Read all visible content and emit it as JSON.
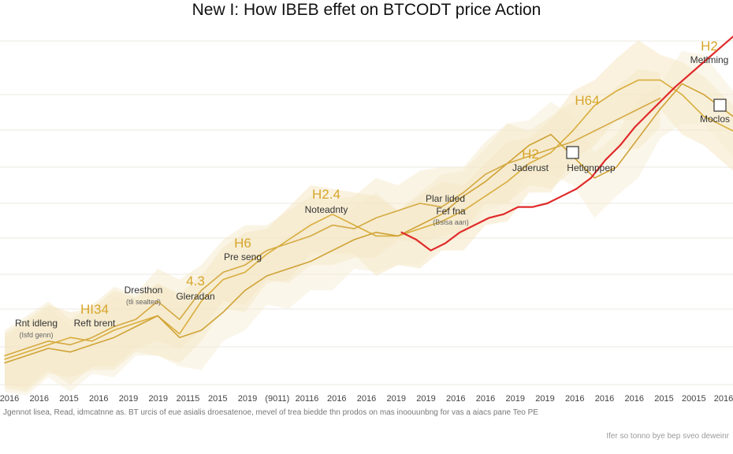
{
  "chart_data": {
    "type": "line",
    "title": "New I: How IBEB effet on BTCODT price Action",
    "xlabel": "",
    "ylabel": "",
    "grid": true,
    "ylim": [
      0,
      100
    ],
    "x_tick_labels": [
      "2016",
      "2016",
      "2015",
      "2016",
      "2019",
      "2019",
      "20115",
      "2015",
      "2019",
      "(9011)",
      "20116",
      "2016",
      "2016",
      "2019",
      "2019",
      "2016",
      "2016",
      "2019",
      "2019",
      "2016",
      "2016",
      "2016",
      "2015",
      "20015",
      "2016"
    ],
    "series": [
      {
        "color": "#e02a2a",
        "x": [
          0.545,
          0.565,
          0.585,
          0.605,
          0.625,
          0.645,
          0.665,
          0.685,
          0.705,
          0.725,
          0.745,
          0.765,
          0.785,
          0.805,
          0.825,
          0.845,
          0.865,
          0.885,
          0.905,
          0.92,
          1.0
        ],
        "y": [
          42,
          40,
          37,
          39,
          42,
          44,
          46,
          47,
          49,
          49,
          50,
          52,
          54,
          57,
          62,
          66,
          71,
          75,
          79,
          82,
          96
        ]
      },
      {
        "color": "#d9ad3c",
        "x": [
          0,
          0.03,
          0.06,
          0.09,
          0.12,
          0.15,
          0.18,
          0.21,
          0.24,
          0.27,
          0.3,
          0.33,
          0.36,
          0.39,
          0.42,
          0.45,
          0.48,
          0.51,
          0.54,
          0.57,
          0.6,
          0.63,
          0.66,
          0.69,
          0.72,
          0.75,
          0.78,
          0.81,
          0.84,
          0.87,
          0.9,
          0.93,
          0.96,
          1.0
        ],
        "y": [
          7,
          9,
          11,
          13,
          12,
          15,
          17,
          19,
          14,
          23,
          29,
          31,
          36,
          40,
          44,
          47,
          44,
          41,
          41,
          43,
          45,
          48,
          52,
          56,
          61,
          64,
          70,
          77,
          81,
          84,
          84,
          80,
          74,
          70
        ]
      },
      {
        "color": "#cfa235",
        "x": [
          0,
          0.03,
          0.06,
          0.09,
          0.12,
          0.15,
          0.18,
          0.21,
          0.24,
          0.27,
          0.3,
          0.33,
          0.36,
          0.39,
          0.42,
          0.45,
          0.48,
          0.51,
          0.54,
          0.57,
          0.6,
          0.63,
          0.66,
          0.69,
          0.72,
          0.75,
          0.78,
          0.81,
          0.84,
          0.87,
          0.9,
          0.93,
          0.96,
          1.0
        ],
        "y": [
          6,
          8,
          10,
          9,
          11,
          13,
          16,
          19,
          13,
          15,
          20,
          26,
          30,
          32,
          34,
          37,
          40,
          42,
          41,
          44,
          47,
          52,
          56,
          61,
          66,
          69,
          63,
          57,
          60,
          68,
          76,
          83,
          80,
          74
        ]
      },
      {
        "color": "#d4a942",
        "x": [
          0,
          0.03,
          0.06,
          0.09,
          0.12,
          0.15,
          0.18,
          0.21,
          0.24,
          0.27,
          0.3,
          0.33,
          0.36,
          0.39,
          0.42,
          0.45,
          0.48,
          0.51,
          0.54,
          0.57,
          0.6,
          0.63,
          0.66,
          0.69,
          0.72,
          0.75,
          0.78,
          0.81,
          0.84,
          0.87,
          0.9
        ],
        "y": [
          8,
          10,
          12,
          11,
          13,
          16,
          18,
          23,
          18,
          26,
          31,
          33,
          37,
          39,
          41,
          44,
          43,
          46,
          48,
          50,
          49,
          53,
          58,
          61,
          63,
          65,
          67,
          70,
          73,
          76,
          79
        ]
      }
    ]
  },
  "annotations": [
    {
      "title": "",
      "sub": "Rnt idleng",
      "subsmall": "(Isfd genn)"
    },
    {
      "title": "HI34",
      "sub": "Reft brent",
      "subsmall": ""
    },
    {
      "title": "",
      "sub": "Dresthon",
      "subsmall": "(tli sealted)"
    },
    {
      "title": "4.3",
      "sub": "Gleradan",
      "subsmall": ""
    },
    {
      "title": "H6",
      "sub": "Pre seng",
      "subsmall": ""
    },
    {
      "title": "H2.4",
      "sub": "Noteadnty",
      "subsmall": ""
    },
    {
      "title": "",
      "sub": "Plar lided",
      "subsmall": ""
    },
    {
      "title": "",
      "sub": "Fef fna",
      "subsmall": "(Bsisa aan)"
    },
    {
      "title": "H2",
      "sub": "Jaderust",
      "subsmall": ""
    },
    {
      "title": "",
      "sub": "Hetlgnppep",
      "subsmall": ""
    },
    {
      "title": "H64",
      "sub": "",
      "subsmall": ""
    },
    {
      "title": "H2",
      "sub": "Metlming",
      "subsmall": ""
    },
    {
      "title": "",
      "sub": "Moclos",
      "subsmall": ""
    }
  ],
  "footnote": "Jgennot lisea, Read, idmcatnne as. BT urcis of eue asialis droesatenoe, mevel of trea biedde thn prodos on mas inoouunbng for vas a aiacs pane Teo PE",
  "corner_text": "Ifer so tonno bye bep sveo deweinr"
}
